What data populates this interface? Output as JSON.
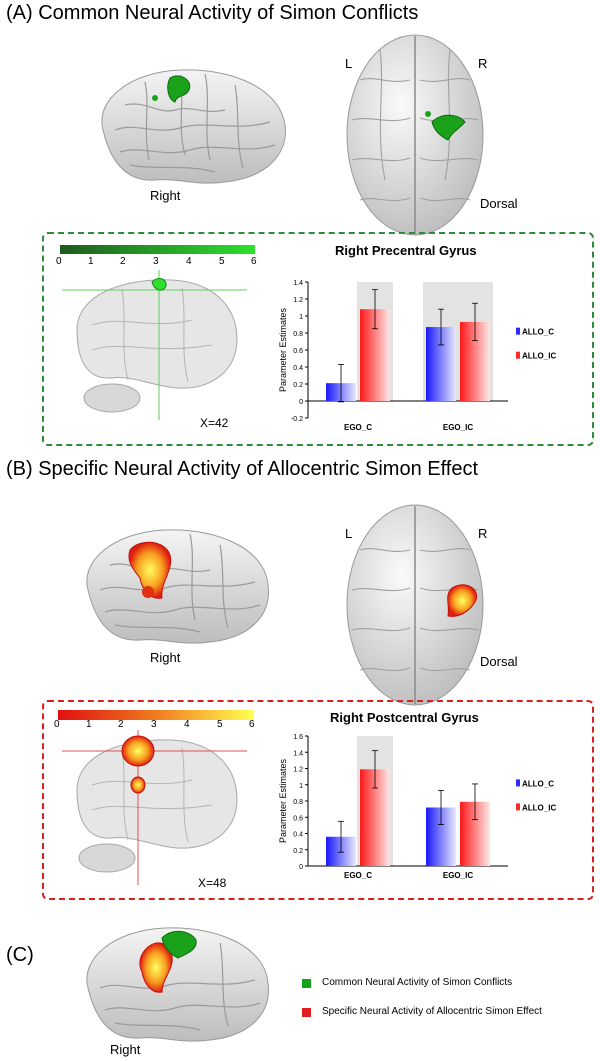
{
  "figure": {
    "sectionA": {
      "title": "(A) Common Neural Activity of Simon Conflicts",
      "lateral_label": "Right",
      "dorsal_label": "Dorsal",
      "L": "L",
      "R": "R",
      "colorbar": {
        "ticks": [
          "0",
          "1",
          "2",
          "3",
          "4",
          "5",
          "6"
        ],
        "colors": [
          "#1e5a1e",
          "#2ee02e"
        ]
      },
      "slice_label": "X=42",
      "activation_color": "#2bb52b"
    },
    "sectionB": {
      "title": "(B) Specific Neural Activity of Allocentric Simon Effect",
      "lateral_label": "Right",
      "dorsal_label": "Dorsal",
      "L": "L",
      "R": "R",
      "colorbar": {
        "ticks": [
          "0",
          "1",
          "2",
          "3",
          "4",
          "5",
          "6"
        ],
        "colors": [
          "#e01010",
          "#ffff40"
        ]
      },
      "slice_label": "X=48",
      "activation_color": "#f08020"
    },
    "sectionC": {
      "label": "(C)",
      "lateral_label": "Right",
      "legend": [
        {
          "label": "Common Neural Activity of Simon Conflicts",
          "color": "#1aa31a"
        },
        {
          "label": "Specific Neural Activity of Allocentric Simon Effect",
          "color": "#e02020"
        }
      ]
    }
  },
  "chart_data": [
    {
      "type": "bar",
      "title": "Right Precentral Gyrus",
      "ylabel": "Parameter Estimates",
      "xlabel": "",
      "categories": [
        "EGO_C",
        "EGO_IC"
      ],
      "series": [
        {
          "name": "ALLO_C",
          "values": [
            0.21,
            0.87
          ],
          "errors": [
            0.22,
            0.21
          ],
          "color": "#2a2aff"
        },
        {
          "name": "ALLO_IC",
          "values": [
            1.08,
            0.93
          ],
          "errors": [
            0.23,
            0.22
          ],
          "color": "#ff2a2a"
        }
      ],
      "ylim": [
        -0.2,
        1.4
      ],
      "yticks": [
        "-0.2",
        "0",
        "0.2",
        "0.4",
        "0.6",
        "0.8",
        "1",
        "1.2",
        "1.4"
      ],
      "highlight": [
        [
          0,
          1
        ],
        [
          1,
          0
        ],
        [
          1,
          1
        ]
      ],
      "legend": "right"
    },
    {
      "type": "bar",
      "title": "Right Postcentral Gyrus",
      "ylabel": "Parameter Estimates",
      "xlabel": "",
      "categories": [
        "EGO_C",
        "EGO_IC"
      ],
      "series": [
        {
          "name": "ALLO_C",
          "values": [
            0.36,
            0.72
          ],
          "errors": [
            0.19,
            0.21
          ],
          "color": "#2a2aff"
        },
        {
          "name": "ALLO_IC",
          "values": [
            1.19,
            0.79
          ],
          "errors": [
            0.23,
            0.22
          ],
          "color": "#ff2a2a"
        }
      ],
      "ylim": [
        0,
        1.6
      ],
      "yticks": [
        "0",
        "0.2",
        "0.4",
        "0.6",
        "0.8",
        "1",
        "1.2",
        "1.4",
        "1.6"
      ],
      "highlight": [
        [
          0,
          1
        ]
      ],
      "legend": "right"
    }
  ]
}
